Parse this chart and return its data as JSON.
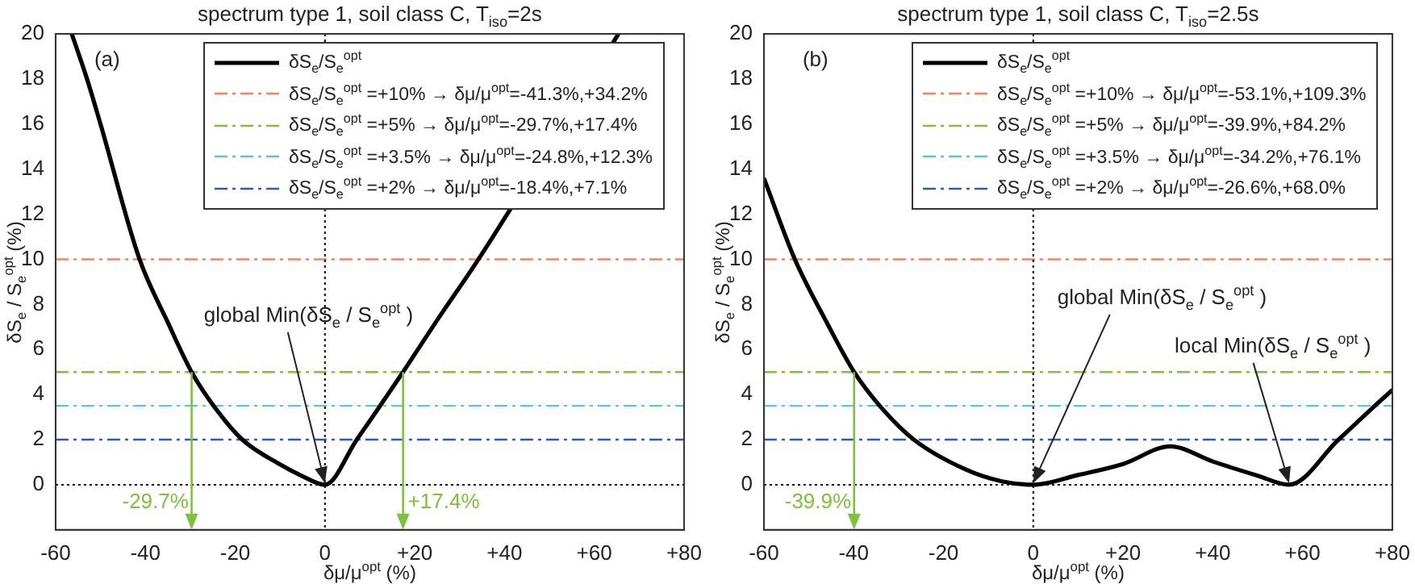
{
  "chart_data": [
    {
      "type": "line",
      "title": "spectrum type 1, soil class C, T$_{iso}$=2s",
      "xlabel": "δμ/μ$^{opt}$  (%)",
      "ylabel": "δS$_{e}$ / S$_{e}$$^{opt}$  (%)",
      "series": [
        {
          "name": "δS$_{e}$/S$_{e}$$^{opt}$",
          "color": "#000000",
          "x": [
            -56.4,
            -53,
            -50,
            -41.3,
            -35,
            -29.7,
            -24.8,
            -18.4,
            -10,
            -5,
            0,
            7.1,
            12.3,
            17.4,
            25,
            34.2,
            65.4
          ],
          "values": [
            20,
            18,
            16,
            10,
            7.2,
            5,
            3.5,
            2,
            0.9,
            0.38,
            0,
            2,
            3.5,
            5,
            7.3,
            10,
            20
          ]
        }
      ],
      "xlim": [
        -60,
        80
      ],
      "xticks": [
        -60,
        -40,
        -20,
        0,
        {
          "value": 20,
          "label": "+20"
        },
        {
          "value": 40,
          "label": "+40"
        },
        {
          "value": 60,
          "label": "+60"
        },
        {
          "value": 80,
          "label": "+80"
        }
      ],
      "ylim": [
        -2,
        20
      ],
      "yticks": [
        0,
        2,
        4,
        6,
        8,
        10,
        12,
        14,
        16,
        18,
        20
      ],
      "ref_lines": [
        {
          "axis": "y",
          "value": 10,
          "label": "δS$_{e}$/S$_{e}$$^{opt}$ =+10% → δμ/μ$^{opt}$=-41.3%,+34.2%",
          "color": "#f4845f",
          "line_style": "dashed"
        },
        {
          "axis": "y",
          "value": 5,
          "label": "δS$_{e}$/S$_{e}$$^{opt}$ =+5% → δμ/μ$^{opt}$=-29.7%,+17.4%",
          "color": "#80c040",
          "line_style": "dashed"
        },
        {
          "axis": "y",
          "value": 3.5,
          "label": "δS$_{e}$/S$_{e}$$^{opt}$ =+3.5% → δμ/μ$^{opt}$=-24.8%,+12.3%",
          "color": "#58c4e0",
          "line_style": "dashed"
        },
        {
          "axis": "y",
          "value": 2,
          "label": "δS$_{e}$/S$_{e}$$^{opt}$ =+2% → δμ/μ$^{opt}$=-18.4%,+7.1%",
          "color": "#2a5cb8",
          "line_style": "dashed"
        },
        {
          "axis": "x",
          "value": 0,
          "color": "#000000",
          "line_style": "dotted"
        },
        {
          "axis": "y",
          "value": 0,
          "color": "#000000",
          "line_style": "dotted"
        }
      ],
      "annotations": [
        "(a)",
        "global Min(δS$_{e}$ / S$_{e}$$^{opt}$ )",
        {
          "text": "-29.7%",
          "x": -29.7,
          "y": 0
        },
        {
          "text": "+17.4%",
          "x": 17.4,
          "y": 0
        }
      ],
      "legend": "top right",
      "grid": false,
      "marker": "none",
      "line_style": "solid"
    },
    {
      "type": "line",
      "title": "spectrum type 1, soil class C, T$_{iso}$=2.5s",
      "xlabel": "δμ/μ$^{opt}$  (%)",
      "ylabel": "δS$_{e}$ / S$_{e}$$^{opt}$  (%)",
      "series": [
        {
          "name": "δS$_{e}$/S$_{e}$$^{opt}$",
          "color": "#000000",
          "x": [
            -60,
            -53.1,
            -46,
            -39.9,
            -34.2,
            -26.6,
            -15,
            -7,
            0,
            10,
            20,
            30.5,
            40,
            50,
            57,
            68,
            76.1,
            80
          ],
          "values": [
            13.6,
            10,
            7.2,
            5,
            3.5,
            2,
            0.67,
            0.15,
            0,
            0.43,
            0.92,
            1.7,
            1.03,
            0.4,
            0,
            2,
            3.5,
            4.2
          ]
        }
      ],
      "xlim": [
        -60,
        80
      ],
      "xticks": [
        -60,
        -40,
        -20,
        0,
        {
          "value": 20,
          "label": "+20"
        },
        {
          "value": 40,
          "label": "+40"
        },
        {
          "value": 60,
          "label": "+60"
        },
        {
          "value": 80,
          "label": "+80"
        }
      ],
      "ylim": [
        -2,
        20
      ],
      "yticks": [
        0,
        2,
        4,
        6,
        8,
        10,
        12,
        14,
        16,
        18,
        20
      ],
      "ref_lines": [
        {
          "axis": "y",
          "value": 10,
          "label": "δS$_{e}$/S$_{e}$$^{opt}$ =+10% → δμ/μ$^{opt}$=-53.1%,+109.3%",
          "color": "#f4845f",
          "line_style": "dashed"
        },
        {
          "axis": "y",
          "value": 5,
          "label": "δS$_{e}$/S$_{e}$$^{opt}$ =+5% → δμ/μ$^{opt}$=-39.9%,+84.2%",
          "color": "#80c040",
          "line_style": "dashed"
        },
        {
          "axis": "y",
          "value": 3.5,
          "label": "δS$_{e}$/S$_{e}$$^{opt}$ =+3.5% → δμ/μ$^{opt}$=-34.2%,+76.1%",
          "color": "#58c4e0",
          "line_style": "dashed"
        },
        {
          "axis": "y",
          "value": 2,
          "label": "δS$_{e}$/S$_{e}$$^{opt}$ =+2% → δμ/μ$^{opt}$=-26.6%,+68.0%",
          "color": "#2a5cb8",
          "line_style": "dashed"
        },
        {
          "axis": "x",
          "value": 0,
          "color": "#000000",
          "line_style": "dotted"
        },
        {
          "axis": "y",
          "value": 0,
          "color": "#000000",
          "line_style": "dotted"
        }
      ],
      "annotations": [
        "(b)",
        "global Min(δS$_{e}$ / S$_{e}$$^{opt}$ )",
        "local Min(δS$_{e}$ / S$_{e}$$^{opt}$ )",
        {
          "text": "-39.9%",
          "x": -39.9,
          "y": 0
        }
      ],
      "legend": "top right",
      "grid": false,
      "marker": "none",
      "line_style": "solid"
    }
  ]
}
